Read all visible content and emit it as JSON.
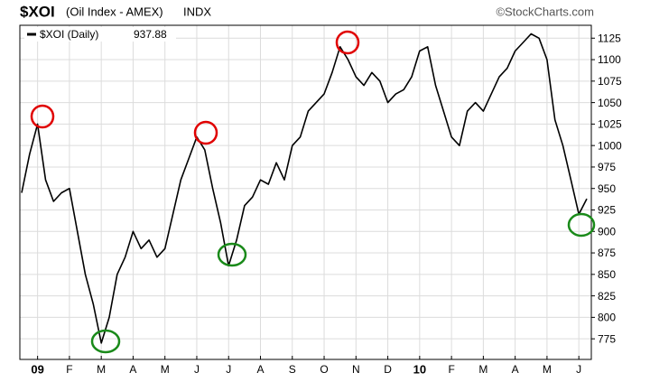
{
  "chart_data": {
    "type": "line",
    "title": "$XOI",
    "subtitle": "(Oil Index - AMEX)",
    "exchange": "INDX",
    "source": "©StockCharts.com",
    "last_value": 937.88,
    "categories": [
      null,
      null,
      "09",
      null,
      null,
      null,
      "F",
      null,
      null,
      null,
      "M",
      null,
      null,
      null,
      "A",
      null,
      null,
      null,
      "M",
      null,
      null,
      null,
      "J",
      null,
      null,
      null,
      "J",
      null,
      null,
      null,
      "A",
      null,
      null,
      null,
      "S",
      null,
      null,
      null,
      "O",
      null,
      null,
      null,
      "N",
      null,
      null,
      null,
      "D",
      null,
      null,
      null,
      "10",
      null,
      null,
      null,
      "F",
      null,
      null,
      null,
      "M",
      null,
      null,
      null,
      "A",
      null,
      null,
      null,
      "M",
      null,
      null,
      null,
      "J",
      null
    ],
    "series": [
      {
        "name": "$XOI (Daily)",
        "color": "#000000",
        "values": [
          945,
          990,
          1025,
          960,
          935,
          945,
          950,
          900,
          850,
          815,
          770,
          800,
          850,
          870,
          900,
          880,
          890,
          870,
          880,
          920,
          960,
          985,
          1010,
          995,
          950,
          910,
          860,
          890,
          930,
          940,
          960,
          955,
          980,
          960,
          1000,
          1010,
          1040,
          1050,
          1060,
          1085,
          1115,
          1100,
          1080,
          1070,
          1085,
          1075,
          1050,
          1060,
          1065,
          1080,
          1110,
          1115,
          1070,
          1040,
          1010,
          1000,
          1040,
          1050,
          1040,
          1060,
          1080,
          1090,
          1110,
          1120,
          1130,
          1125,
          1100,
          1030,
          1000,
          960,
          920,
          938
        ]
      }
    ],
    "ylim": [
      751,
      1140
    ],
    "yticks": [
      775,
      800,
      825,
      850,
      875,
      900,
      925,
      950,
      975,
      1000,
      1025,
      1050,
      1075,
      1100,
      1125
    ],
    "grid": true
  }
}
